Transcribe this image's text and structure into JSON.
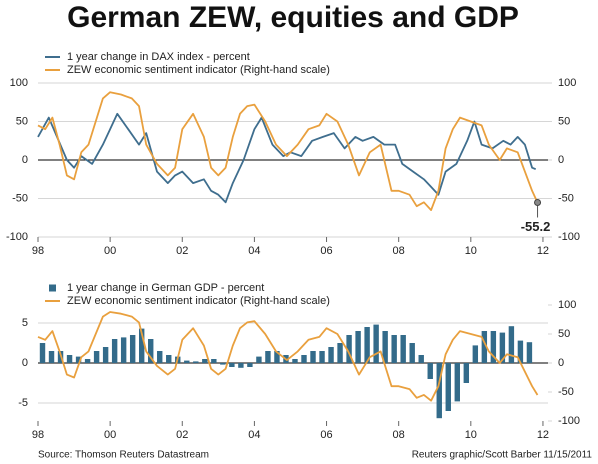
{
  "title": "German ZEW, equities and GDP",
  "source": "Source: Thomson Reuters Datastream",
  "credit": "Reuters graphic/Scott Barber 11/15/2011",
  "chart_data": [
    {
      "type": "line",
      "end_label": "-55.2",
      "xlim": [
        1998,
        2012.14
      ],
      "xticks": [
        {
          "value": 1998,
          "label": "98"
        },
        {
          "value": 2000,
          "label": "00"
        },
        {
          "value": 2002,
          "label": "02"
        },
        {
          "value": 2004,
          "label": "04"
        },
        {
          "value": 2006,
          "label": "06"
        },
        {
          "value": 2008,
          "label": "08"
        },
        {
          "value": 2010,
          "label": "10"
        },
        {
          "value": 2012,
          "label": "12"
        }
      ],
      "ylim": [
        -100,
        100
      ],
      "yticks": [
        -100,
        -50,
        0,
        50,
        100
      ],
      "y2lim": [
        -100,
        100
      ],
      "y2ticks": [
        -100,
        -50,
        0,
        50,
        100
      ],
      "grid": true,
      "series": [
        {
          "name": "1 year change in DAX index - percent",
          "type": "line",
          "color": "#3f6e8e",
          "x": [
            1998.0,
            1998.3,
            1998.8,
            1999.0,
            1999.2,
            1999.5,
            1999.8,
            2000.0,
            2000.2,
            2000.5,
            2000.8,
            2001.0,
            2001.3,
            2001.6,
            2001.8,
            2002.0,
            2002.3,
            2002.6,
            2002.8,
            2003.0,
            2003.2,
            2003.4,
            2003.7,
            2004.0,
            2004.2,
            2004.5,
            2004.8,
            2005.0,
            2005.3,
            2005.6,
            2005.9,
            2006.2,
            2006.5,
            2006.8,
            2007.0,
            2007.3,
            2007.6,
            2007.9,
            2008.1,
            2008.4,
            2008.7,
            2008.9,
            2009.1,
            2009.3,
            2009.6,
            2009.9,
            2010.1,
            2010.3,
            2010.6,
            2010.9,
            2011.1,
            2011.3,
            2011.5,
            2011.7,
            2011.8
          ],
          "values": [
            30,
            55,
            0,
            -10,
            5,
            -5,
            20,
            40,
            60,
            40,
            20,
            35,
            -15,
            -30,
            -20,
            -15,
            -30,
            -25,
            -40,
            -45,
            -55,
            -30,
            0,
            40,
            55,
            20,
            5,
            10,
            5,
            25,
            30,
            35,
            15,
            30,
            25,
            30,
            20,
            20,
            -5,
            -15,
            -25,
            -35,
            -45,
            -15,
            -5,
            25,
            50,
            20,
            15,
            25,
            20,
            30,
            20,
            -10,
            -12
          ]
        },
        {
          "name": "ZEW economic sentiment indicator (Right-hand scale)",
          "type": "line",
          "color": "#e9a03e",
          "axis": "y2",
          "x": [
            1998.0,
            1998.2,
            1998.4,
            1998.6,
            1998.8,
            1999.0,
            1999.2,
            1999.4,
            1999.6,
            1999.8,
            2000.0,
            2000.3,
            2000.6,
            2000.8,
            2001.0,
            2001.3,
            2001.6,
            2001.8,
            2002.0,
            2002.3,
            2002.6,
            2002.8,
            2003.0,
            2003.2,
            2003.4,
            2003.6,
            2003.8,
            2004.0,
            2004.3,
            2004.6,
            2004.9,
            2005.2,
            2005.5,
            2005.8,
            2006.0,
            2006.3,
            2006.6,
            2006.9,
            2007.2,
            2007.5,
            2007.8,
            2008.0,
            2008.3,
            2008.5,
            2008.7,
            2008.9,
            2009.1,
            2009.3,
            2009.5,
            2009.7,
            2010.0,
            2010.3,
            2010.5,
            2010.8,
            2011.0,
            2011.3,
            2011.5,
            2011.7,
            2011.85
          ],
          "values": [
            45,
            40,
            55,
            20,
            -20,
            -25,
            10,
            20,
            50,
            80,
            88,
            85,
            80,
            70,
            20,
            -5,
            -20,
            -10,
            40,
            60,
            30,
            -10,
            -20,
            -10,
            30,
            60,
            70,
            72,
            50,
            20,
            5,
            20,
            40,
            45,
            60,
            50,
            20,
            -20,
            10,
            20,
            -40,
            -40,
            -45,
            -60,
            -55,
            -65,
            -40,
            15,
            40,
            55,
            50,
            45,
            20,
            0,
            15,
            10,
            -15,
            -40,
            -55.2
          ]
        }
      ]
    },
    {
      "type": "combo",
      "xlim": [
        1998,
        2012.14
      ],
      "xticks": [
        {
          "value": 1998,
          "label": "98"
        },
        {
          "value": 2000,
          "label": "00"
        },
        {
          "value": 2002,
          "label": "02"
        },
        {
          "value": 2004,
          "label": "04"
        },
        {
          "value": 2006,
          "label": "06"
        },
        {
          "value": 2008,
          "label": "08"
        },
        {
          "value": 2010,
          "label": "10"
        },
        {
          "value": 2012,
          "label": "12"
        }
      ],
      "ylim": [
        -7.25,
        7.25
      ],
      "yticks": [
        -5,
        0,
        5
      ],
      "y2lim": [
        -100,
        100
      ],
      "y2ticks": [
        -100,
        -50,
        0,
        50,
        100
      ],
      "grid": true,
      "series": [
        {
          "name": "1 year change in German GDP - percent",
          "type": "bar",
          "color": "#336b8a",
          "x": [
            1998.125,
            1998.375,
            1998.625,
            1998.875,
            1999.125,
            1999.375,
            1999.625,
            1999.875,
            2000.125,
            2000.375,
            2000.625,
            2000.875,
            2001.125,
            2001.375,
            2001.625,
            2001.875,
            2002.125,
            2002.375,
            2002.625,
            2002.875,
            2003.125,
            2003.375,
            2003.625,
            2003.875,
            2004.125,
            2004.375,
            2004.625,
            2004.875,
            2005.125,
            2005.375,
            2005.625,
            2005.875,
            2006.125,
            2006.375,
            2006.625,
            2006.875,
            2007.125,
            2007.375,
            2007.625,
            2007.875,
            2008.125,
            2008.375,
            2008.625,
            2008.875,
            2009.125,
            2009.375,
            2009.625,
            2009.875,
            2010.125,
            2010.375,
            2010.625,
            2010.875,
            2011.125,
            2011.375,
            2011.625
          ],
          "values": [
            2.5,
            1.5,
            1.5,
            1.0,
            0.8,
            0.5,
            1.5,
            2.0,
            3.0,
            3.2,
            3.5,
            4.3,
            3.0,
            1.5,
            1.0,
            0.8,
            0.3,
            0.2,
            0.5,
            0.5,
            -0.2,
            -0.5,
            -0.6,
            -0.5,
            0.8,
            1.5,
            1.5,
            1.0,
            0.5,
            1.0,
            1.5,
            1.5,
            2.0,
            2.5,
            3.5,
            4.0,
            4.5,
            4.8,
            4.0,
            3.5,
            3.5,
            2.5,
            1.0,
            -2.0,
            -6.9,
            -6.0,
            -4.8,
            -2.5,
            2.2,
            4.0,
            4.0,
            3.8,
            4.6,
            2.8,
            2.6
          ]
        },
        {
          "name": "ZEW economic sentiment indicator (Right-hand scale)",
          "type": "line",
          "color": "#e9a03e",
          "axis": "y2",
          "x": [
            1998.0,
            1998.2,
            1998.4,
            1998.6,
            1998.8,
            1999.0,
            1999.2,
            1999.4,
            1999.6,
            1999.8,
            2000.0,
            2000.3,
            2000.6,
            2000.8,
            2001.0,
            2001.3,
            2001.6,
            2001.8,
            2002.0,
            2002.3,
            2002.6,
            2002.8,
            2003.0,
            2003.2,
            2003.4,
            2003.6,
            2003.8,
            2004.0,
            2004.3,
            2004.6,
            2004.9,
            2005.2,
            2005.5,
            2005.8,
            2006.0,
            2006.3,
            2006.6,
            2006.9,
            2007.2,
            2007.5,
            2007.8,
            2008.0,
            2008.3,
            2008.5,
            2008.7,
            2008.9,
            2009.1,
            2009.3,
            2009.5,
            2009.7,
            2010.0,
            2010.3,
            2010.5,
            2010.8,
            2011.0,
            2011.3,
            2011.5,
            2011.7,
            2011.85
          ],
          "values": [
            45,
            40,
            55,
            20,
            -20,
            -25,
            10,
            20,
            50,
            80,
            88,
            85,
            80,
            70,
            20,
            -5,
            -20,
            -10,
            40,
            60,
            30,
            -10,
            -20,
            -10,
            30,
            60,
            70,
            72,
            50,
            20,
            5,
            20,
            40,
            45,
            60,
            50,
            20,
            -20,
            10,
            20,
            -40,
            -40,
            -45,
            -60,
            -55,
            -65,
            -40,
            15,
            40,
            55,
            50,
            45,
            20,
            0,
            15,
            10,
            -15,
            -40,
            -55.2
          ]
        }
      ]
    }
  ]
}
